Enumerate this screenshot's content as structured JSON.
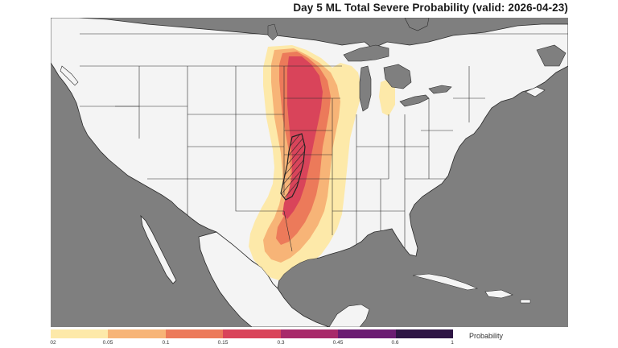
{
  "title": "Day 5 ML Total Severe Probability (valid: 2026-04-23)",
  "legend": {
    "title": "Probability",
    "ticks": [
      "02",
      "0.05",
      "0.1",
      "0.15",
      "0.3",
      "0.45",
      "0.6",
      "1"
    ],
    "colors": [
      "#fde9a9",
      "#f7b477",
      "#ec7a5a",
      "#d9445a",
      "#a82a6a",
      "#6b1c72",
      "#2e1544"
    ]
  },
  "map": {
    "ocean_color": "#7f7f7f",
    "land_color": "#f4f4f4",
    "border_color": "#2a2a2a"
  }
}
